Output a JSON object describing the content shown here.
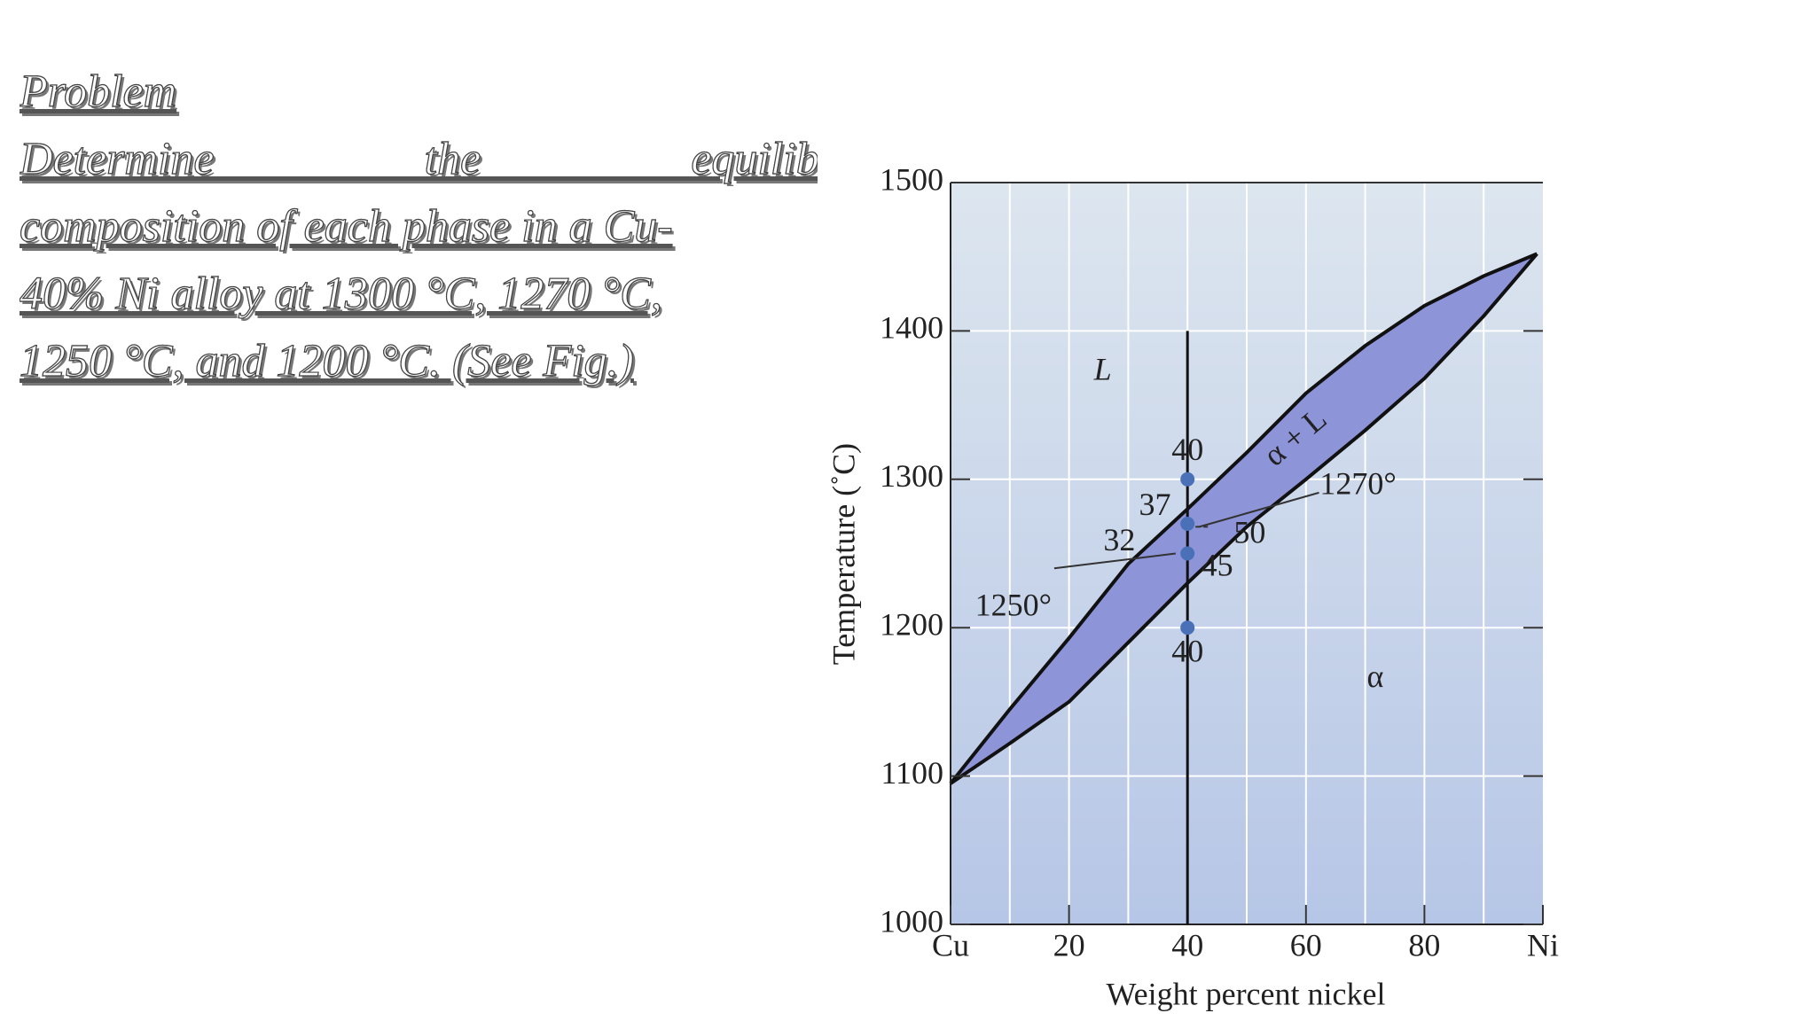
{
  "slide": {
    "heading": "Problem",
    "lines": [
      "Determine the equilibrium",
      "composition of each phase in a Cu-",
      "40% Ni alloy at 1300 °C, 1270 °C,",
      "1250 °C, and 1200 °C. (See Fig.)"
    ]
  },
  "chart_data": {
    "type": "line",
    "x_label": "Weight percent nickel",
    "y_label": "Temperature (˚C)",
    "x": [
      0,
      10,
      20,
      30,
      40,
      50,
      60,
      70,
      80,
      90,
      99
    ],
    "series": [
      {
        "color": "#111111",
        "values": [
          1095,
          1145,
          1193,
          1243,
          1280,
          1318,
          1358,
          1390,
          1417,
          1437,
          1452
        ]
      },
      {
        "color": "#111111",
        "values": [
          1095,
          1122,
          1150,
          1190,
          1230,
          1268,
          1300,
          1333,
          1368,
          1410,
          1452
        ]
      }
    ],
    "region_color": "#8d94d8",
    "xlim": [
      0,
      100
    ],
    "ylim": [
      1000,
      1500
    ],
    "xticks": [
      {
        "value": 0,
        "label": "Cu"
      },
      20,
      40,
      60,
      80,
      {
        "value": 100,
        "label": "Ni"
      }
    ],
    "yticks": [
      1000,
      1100,
      1200,
      1300,
      1400,
      1500
    ],
    "x_minor_grid": [
      10,
      30,
      50,
      70,
      90
    ],
    "grid": true,
    "vline": {
      "x": 40,
      "y": [
        1000,
        1400
      ]
    },
    "points": {
      "x": [
        40,
        40,
        40,
        40
      ],
      "y": [
        1300,
        1270,
        1250,
        1200
      ],
      "color": "#4a70b8"
    },
    "composition_labels": [
      40,
      37,
      32,
      50,
      45,
      40
    ],
    "annotations": [
      "L",
      "α + L",
      "α",
      "1270°",
      "1250°"
    ]
  }
}
